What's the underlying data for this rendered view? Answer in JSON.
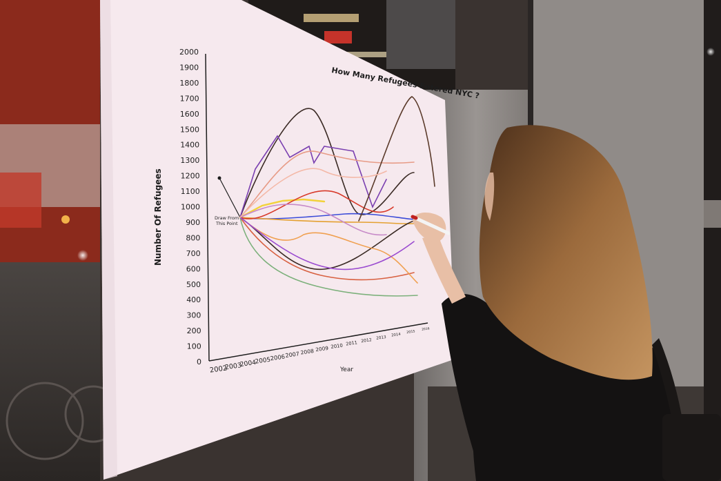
{
  "chart": {
    "title": "How Many Refugees Entered NYC ?",
    "ylabel": "Number Of Refugees",
    "xlabel": "Year",
    "start_label_1": "Draw From",
    "start_label_2": "This Point",
    "y_ticks": [
      "0",
      "100",
      "200",
      "300",
      "400",
      "500",
      "600",
      "700",
      "800",
      "900",
      "1000",
      "1100",
      "1200",
      "1300",
      "1400",
      "1500",
      "1600",
      "1700",
      "1800",
      "1900",
      "2000"
    ],
    "x_ticks": [
      "2002",
      "2003",
      "2004",
      "2005",
      "2006",
      "2007",
      "2008",
      "2009",
      "2010",
      "2011",
      "2012",
      "2013",
      "2014",
      "2015",
      "2016"
    ]
  },
  "colors": {
    "poster": "#f6e9ee",
    "wall": "#8c8784",
    "sweater": "#141212",
    "hair": "#8a5a33"
  }
}
